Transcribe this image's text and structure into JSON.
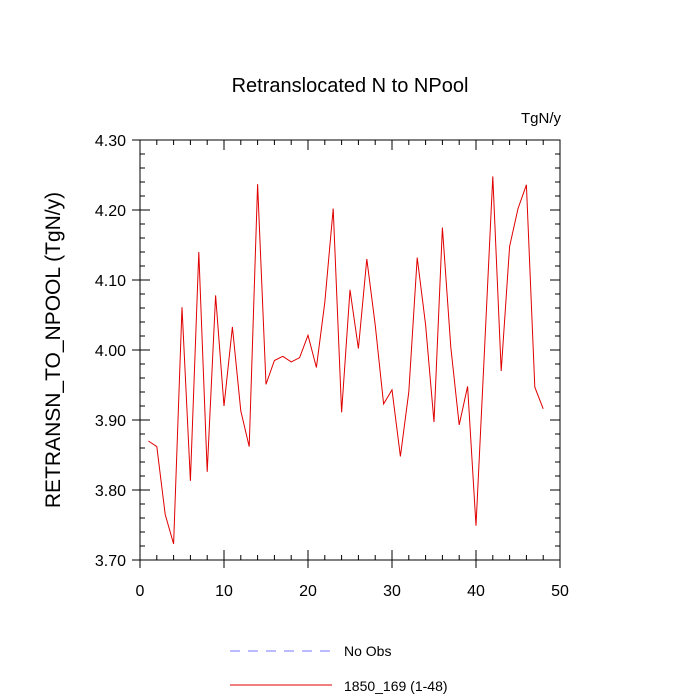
{
  "chart_data": {
    "type": "line",
    "title": "Retranslocated N to NPool",
    "units": "TgN/y",
    "ylabel": "RETRANSN_TO_NPOOL  (TgN/y)",
    "xlabel": "",
    "xlim": [
      0,
      50
    ],
    "ylim": [
      3.7,
      4.3
    ],
    "x_ticks": [
      "0",
      "10",
      "20",
      "30",
      "40",
      "50"
    ],
    "y_ticks": [
      "3.70",
      "3.80",
      "3.90",
      "4.00",
      "4.10",
      "4.20",
      "4.30"
    ],
    "grid": false,
    "legend_position": "bottom",
    "series": [
      {
        "name": "No Obs",
        "color": "#7777ff",
        "dash": "dashed",
        "x": [],
        "values": []
      },
      {
        "name": "1850_169 (1-48)",
        "color": "#e00000",
        "dash": "solid",
        "x": [
          1,
          2,
          3,
          4,
          5,
          6,
          7,
          8,
          9,
          10,
          11,
          12,
          13,
          14,
          15,
          16,
          17,
          18,
          19,
          20,
          21,
          22,
          23,
          24,
          25,
          26,
          27,
          28,
          29,
          30,
          31,
          32,
          33,
          34,
          35,
          36,
          37,
          38,
          39,
          40,
          41,
          42,
          43,
          44,
          45,
          46,
          47,
          48
        ],
        "values": [
          3.87,
          3.862,
          3.765,
          3.723,
          4.061,
          3.813,
          4.14,
          3.826,
          4.078,
          3.92,
          4.033,
          3.913,
          3.862,
          4.237,
          3.951,
          3.985,
          3.991,
          3.983,
          3.989,
          4.021,
          3.975,
          4.068,
          4.202,
          3.911,
          4.086,
          4.002,
          4.13,
          4.036,
          3.923,
          3.943,
          3.848,
          3.94,
          4.132,
          4.036,
          3.897,
          4.175,
          4.004,
          3.893,
          3.948,
          3.749,
          3.997,
          4.248,
          3.97,
          4.148,
          4.202,
          4.236,
          3.947,
          3.916
        ]
      }
    ]
  }
}
